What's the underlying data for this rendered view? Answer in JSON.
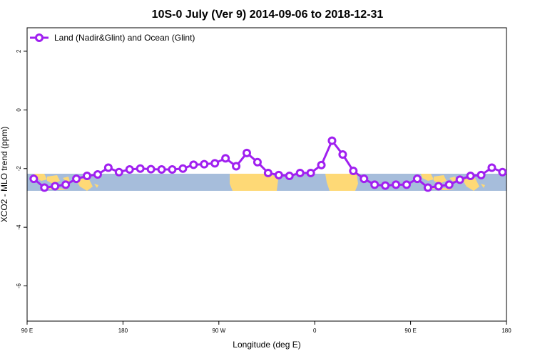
{
  "chart_data": {
    "type": "line",
    "title": "10S-0 July (Ver 9)   2014-09-06 to 2018-12-31",
    "xlabel": "Longitude (deg E)",
    "ylabel": "XCO2 - MLO trend (ppm)",
    "xlim": [
      90,
      450
    ],
    "ylim": [
      -7.2,
      2.8
    ],
    "x_ticks": [
      {
        "value": 90,
        "label": "90 E"
      },
      {
        "value": 162,
        "label": "180"
      },
      {
        "value": 234,
        "label": "90 W"
      },
      {
        "value": 306,
        "label": "0"
      },
      {
        "value": 378,
        "label": "90 E"
      },
      {
        "value": 450,
        "label": "180"
      }
    ],
    "y_ticks": [
      {
        "value": 2,
        "label": "2"
      },
      {
        "value": 0,
        "label": "0"
      },
      {
        "value": -2,
        "label": "-2"
      },
      {
        "value": -4,
        "label": "-4"
      },
      {
        "value": -6,
        "label": "-6"
      }
    ],
    "legend": {
      "position": "top-left",
      "entries": [
        "Land (Nadir&Glint) and Ocean (Glint)"
      ]
    },
    "grid": false,
    "map_band": {
      "latitude_range": "10S-0",
      "ocean_color": "#a6bddb",
      "land_color": "#fed976"
    },
    "series": [
      {
        "name": "Land (Nadir&Glint) and Ocean (Glint)",
        "color": "#a020f0",
        "x": [
          95,
          103,
          111,
          119,
          127,
          135,
          143,
          151,
          159,
          167,
          175,
          183,
          191,
          199,
          207,
          215,
          223,
          231,
          239,
          247,
          255,
          263,
          271,
          279,
          287,
          295,
          303,
          311,
          319,
          327,
          335,
          343,
          351,
          359,
          367,
          375,
          383,
          391,
          399,
          407,
          415,
          423,
          431,
          439,
          447
        ],
        "values": [
          -2.35,
          -2.65,
          -2.6,
          -2.55,
          -2.35,
          -2.25,
          -2.2,
          -1.97,
          -2.12,
          -2.03,
          -2.0,
          -2.02,
          -2.03,
          -2.03,
          -2.0,
          -1.87,
          -1.85,
          -1.82,
          -1.65,
          -1.92,
          -1.47,
          -1.78,
          -2.15,
          -2.22,
          -2.25,
          -2.15,
          -2.15,
          -1.88,
          -1.05,
          -1.52,
          -2.08,
          -2.35,
          -2.55,
          -2.58,
          -2.55,
          -2.55,
          -2.35,
          -2.65,
          -2.6,
          -2.55,
          -2.38,
          -2.25,
          -2.22,
          -1.97,
          -2.12
        ]
      }
    ]
  }
}
